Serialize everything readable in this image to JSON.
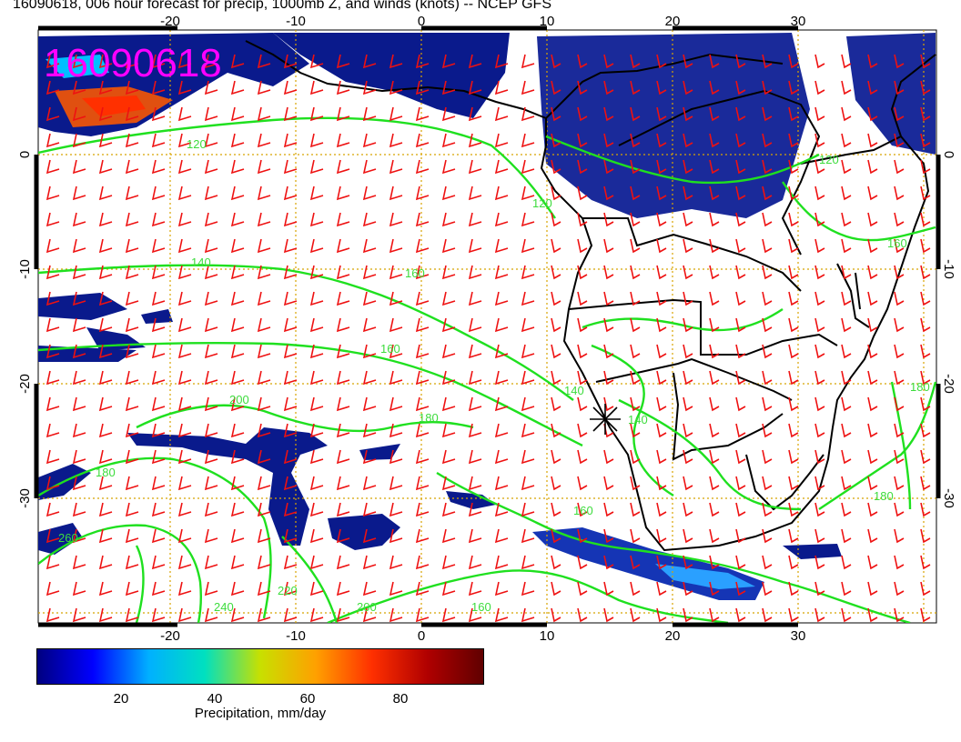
{
  "title": "16090618, 006 hour forecast for precip, 1000mb Z, and winds (knots) -- NCEP GFS",
  "stamp": "16090618",
  "map": {
    "lon_ticks": [
      "-20",
      "-10",
      "0",
      "10",
      "20",
      "30"
    ],
    "lat_ticks": [
      "0",
      "-10",
      "-20",
      "-30"
    ],
    "contour_labels": [
      "120",
      "120",
      "140",
      "160",
      "200",
      "180",
      "140",
      "160",
      "260",
      "240",
      "220",
      "200",
      "180",
      "140",
      "160",
      "160",
      "180",
      "160",
      "120",
      "180"
    ],
    "colors": {
      "land_contour": "#1fe01f",
      "wind_barbs": "#ee1111",
      "coastline": "#000000",
      "grid": "#d8a400",
      "precip": "#0a1a8c",
      "stamp": "#ff00ff"
    },
    "marker": "station-cross"
  },
  "colorbar": {
    "ticks": [
      "20",
      "40",
      "60",
      "80"
    ],
    "label": "Precipitation, mm/day",
    "range": [
      0,
      100
    ],
    "colors": [
      "#000080",
      "#0000ff",
      "#00b0ff",
      "#00e0c0",
      "#c8e000",
      "#ffa000",
      "#ff3000",
      "#b00000",
      "#600000"
    ]
  }
}
